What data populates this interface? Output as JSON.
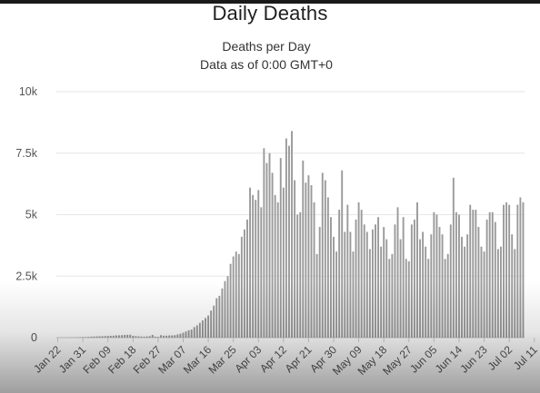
{
  "page_title": "Daily Deaths",
  "chart_data": {
    "type": "bar",
    "title": "Deaths per Day",
    "subtitle": "Data as of 0:00 GMT+0",
    "xlabel": "",
    "ylabel": "",
    "ylim": [
      0,
      10000
    ],
    "y_ticks": [
      {
        "value": 0,
        "label": "0"
      },
      {
        "value": 2500,
        "label": "2.5k"
      },
      {
        "value": 5000,
        "label": "5k"
      },
      {
        "value": 7500,
        "label": "7.5k"
      },
      {
        "value": 10000,
        "label": "10k"
      }
    ],
    "x_tick_labels": [
      "Jan 22",
      "Jan 31",
      "Feb 09",
      "Feb 18",
      "Feb 27",
      "Mar 07",
      "Mar 16",
      "Mar 25",
      "Apr 03",
      "Apr 12",
      "Apr 21",
      "Apr 30",
      "May 09",
      "May 18",
      "May 27",
      "Jun 05",
      "Jun 14",
      "Jun 23",
      "Jul 02",
      "Jul 11"
    ],
    "tick_interval_days": 9,
    "grid": true,
    "bar_color": "#9a9a9a",
    "values": [
      0,
      5,
      3,
      4,
      5,
      10,
      10,
      15,
      20,
      25,
      25,
      30,
      40,
      45,
      50,
      55,
      60,
      65,
      70,
      75,
      80,
      90,
      95,
      100,
      110,
      115,
      120,
      75,
      60,
      55,
      45,
      40,
      50,
      60,
      110,
      40,
      30,
      100,
      80,
      80,
      90,
      90,
      100,
      130,
      160,
      200,
      250,
      300,
      330,
      430,
      500,
      600,
      700,
      800,
      900,
      1100,
      1300,
      1600,
      1700,
      2000,
      2300,
      2500,
      3000,
      3300,
      3500,
      3400,
      4100,
      4400,
      4800,
      6100,
      5800,
      5600,
      6000,
      5300,
      7700,
      7100,
      7500,
      6700,
      5800,
      5500,
      7300,
      6100,
      8100,
      7800,
      8400,
      6400,
      5000,
      5100,
      7200,
      6300,
      6600,
      6200,
      5500,
      3400,
      4500,
      6700,
      6400,
      5700,
      4900,
      4100,
      3500,
      5200,
      6800,
      4300,
      5400,
      4300,
      3500,
      4800,
      5500,
      5200,
      4600,
      4300,
      3600,
      4400,
      4600,
      4900,
      3700,
      4500,
      4000,
      3200,
      3400,
      4600,
      5300,
      4000,
      4900,
      3200,
      3100,
      4600,
      4800,
      5500,
      4000,
      4300,
      3700,
      3200,
      4200,
      5100,
      5000,
      4500,
      4200,
      3200,
      3400,
      4600,
      6500,
      5100,
      5000,
      4100,
      3700,
      4200,
      5400,
      5200,
      5200,
      4500,
      3700,
      3500,
      4800,
      5100,
      5100,
      4700,
      3600,
      3700,
      5400,
      5500,
      5400,
      4200,
      3600,
      5400,
      5700,
      5500
    ]
  }
}
